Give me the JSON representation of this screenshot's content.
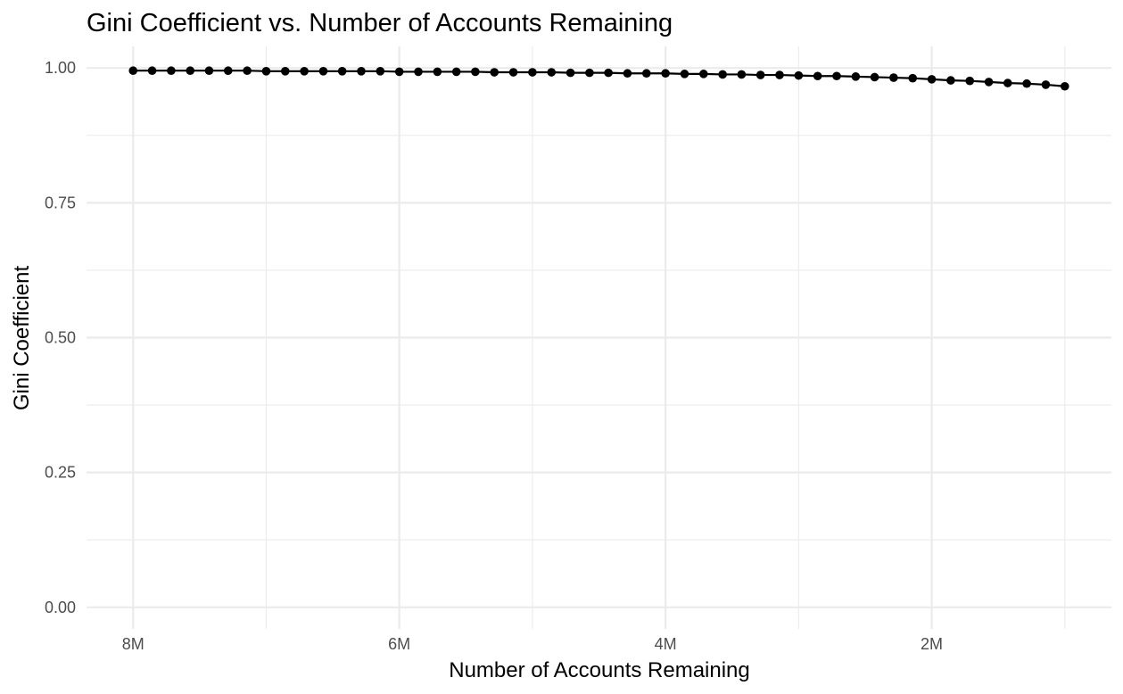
{
  "chart_data": {
    "type": "line",
    "title": "Gini Coefficient vs. Number of Accounts Remaining",
    "xlabel": "Number of Accounts Remaining",
    "ylabel": "Gini Coefficient",
    "x_reversed": true,
    "xlim": [
      8350000,
      650000
    ],
    "ylim": [
      -0.04,
      1.04
    ],
    "x_ticks": [
      {
        "value": 8000000,
        "label": "8M"
      },
      {
        "value": 6000000,
        "label": "6M"
      },
      {
        "value": 4000000,
        "label": "4M"
      },
      {
        "value": 2000000,
        "label": "2M"
      }
    ],
    "x_minor_ticks": [
      7000000,
      5000000,
      3000000,
      1000000
    ],
    "y_ticks": [
      {
        "value": 0.0,
        "label": "0.00"
      },
      {
        "value": 0.25,
        "label": "0.25"
      },
      {
        "value": 0.5,
        "label": "0.50"
      },
      {
        "value": 0.75,
        "label": "0.75"
      },
      {
        "value": 1.0,
        "label": "1.00"
      }
    ],
    "y_minor_ticks": [
      0.125,
      0.375,
      0.625,
      0.875
    ],
    "grid": true,
    "series": [
      {
        "color": "#000000",
        "x": [
          8000000,
          7857000,
          7714000,
          7571000,
          7429000,
          7286000,
          7143000,
          7000000,
          6857000,
          6714000,
          6571000,
          6429000,
          6286000,
          6143000,
          6000000,
          5857000,
          5714000,
          5571000,
          5429000,
          5286000,
          5143000,
          5000000,
          4857000,
          4714000,
          4571000,
          4429000,
          4286000,
          4143000,
          4000000,
          3857000,
          3714000,
          3571000,
          3429000,
          3286000,
          3143000,
          3000000,
          2857000,
          2714000,
          2571000,
          2429000,
          2286000,
          2143000,
          2000000,
          1857000,
          1714000,
          1571000,
          1429000,
          1286000,
          1143000,
          1000000
        ],
        "y": [
          0.995,
          0.995,
          0.995,
          0.995,
          0.995,
          0.995,
          0.995,
          0.994,
          0.994,
          0.994,
          0.994,
          0.994,
          0.994,
          0.994,
          0.993,
          0.993,
          0.993,
          0.993,
          0.993,
          0.992,
          0.992,
          0.992,
          0.992,
          0.991,
          0.991,
          0.991,
          0.99,
          0.99,
          0.99,
          0.989,
          0.989,
          0.988,
          0.988,
          0.987,
          0.987,
          0.986,
          0.985,
          0.985,
          0.984,
          0.983,
          0.982,
          0.981,
          0.979,
          0.977,
          0.976,
          0.974,
          0.972,
          0.971,
          0.969,
          0.966
        ]
      }
    ]
  }
}
